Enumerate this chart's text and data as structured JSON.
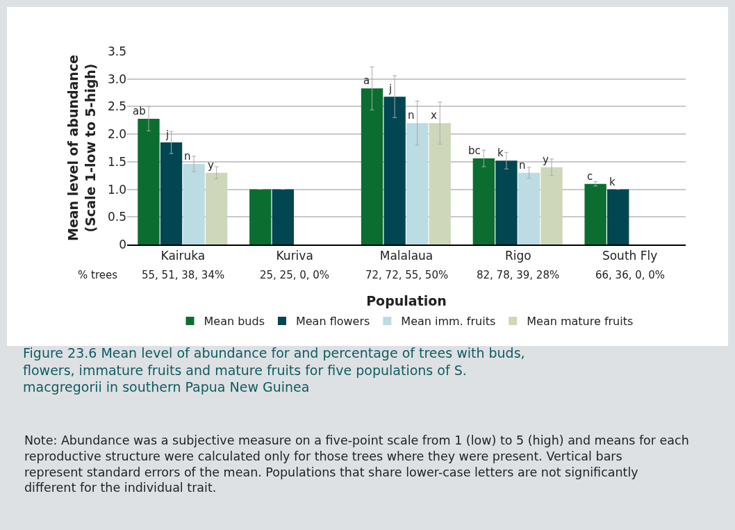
{
  "chart_data": {
    "type": "bar",
    "title": "Figure 23.6 Mean level of abundance for and percentage of trees with buds, flowers, immature fruits and mature fruits for five populations of S. macgregorii in southern Papua New Guinea",
    "xlabel": "Population",
    "ylabel": "Mean level of abundance\n(Scale 1-low to 5-high)",
    "categories": [
      "Kairuka",
      "Kuriva",
      "Malalaua",
      "Rigo",
      "South Fly"
    ],
    "series": [
      {
        "name": "Mean buds",
        "color": "#0b6e30",
        "values": [
          2.28,
          1.0,
          2.83,
          1.56,
          1.1
        ],
        "errors": [
          0.22,
          null,
          0.39,
          0.15,
          0.04
        ],
        "value_labels": [
          "ab",
          null,
          "a",
          "bc",
          "c"
        ]
      },
      {
        "name": "Mean flowers",
        "color": "#024651",
        "values": [
          1.85,
          1.0,
          2.68,
          1.52,
          1.0
        ],
        "errors": [
          0.2,
          null,
          0.38,
          0.15,
          null
        ],
        "value_labels": [
          "j",
          null,
          "j",
          "k",
          "k"
        ]
      },
      {
        "name": "Mean imm. fruits",
        "color": "#badce2",
        "values": [
          1.46,
          null,
          2.2,
          1.3,
          null
        ],
        "errors": [
          0.14,
          null,
          0.4,
          0.1,
          null
        ],
        "value_labels": [
          "n",
          null,
          "n",
          "n",
          null
        ]
      },
      {
        "name": "Mean mature fruits",
        "color": "#cfd7bb",
        "values": [
          1.3,
          null,
          2.2,
          1.4,
          null
        ],
        "errors": [
          0.11,
          null,
          0.38,
          0.15,
          null
        ],
        "value_labels": [
          "y",
          null,
          "x",
          "y",
          null
        ]
      }
    ],
    "ylim": [
      0,
      3.5
    ],
    "yticks": [
      0,
      {
        "value": 0.5,
        "label": "0.5"
      },
      {
        "value": 1,
        "label": "1.0"
      },
      {
        "value": 1.5,
        "label": "1.5"
      },
      {
        "value": 2,
        "label": "2.0"
      },
      {
        "value": 2.5,
        "label": "2.5"
      },
      {
        "value": 3,
        "label": "3.0"
      },
      {
        "value": 3.5,
        "label": "3.5"
      }
    ],
    "grid": "y",
    "legend": "bottom",
    "annotations": [
      "% trees",
      "55, 51, 38, 34%",
      "25, 25, 0, 0%",
      "72, 72, 55, 50%",
      "82, 78, 39, 28%",
      "66, 36, 0, 0%",
      "Note: Abundance was a subjective measure on a five-point scale from 1 (low) to 5 (high) and means for each reproductive structure were calculated only for those trees where they were present. Vertical bars represent standard errors of the mean. Populations that share lower-case letters are not significantly different for the individual trait."
    ]
  }
}
